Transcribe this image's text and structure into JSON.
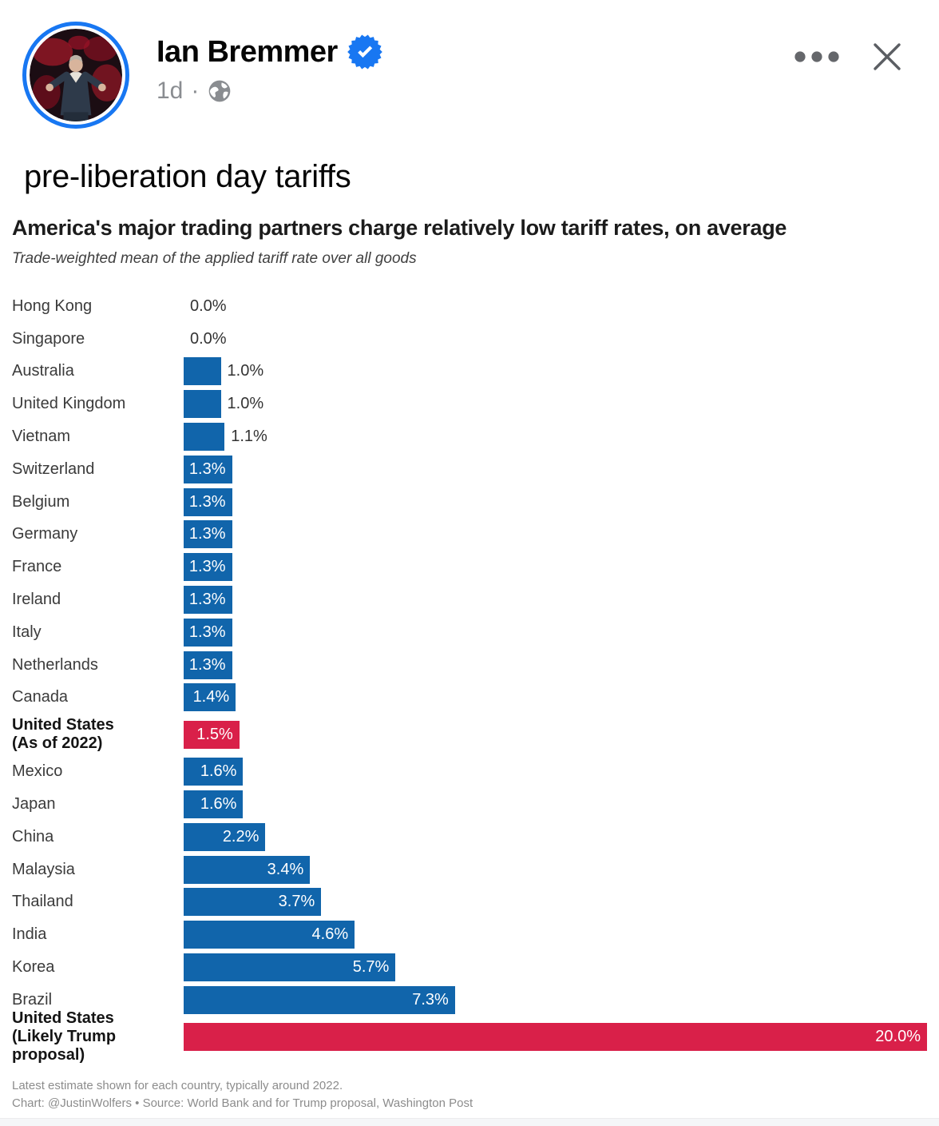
{
  "post": {
    "author": "Ian Bremmer",
    "verified": true,
    "timestamp": "1d",
    "visibility": "Public",
    "separator": "·",
    "text": "pre-liberation day tariffs"
  },
  "header_icons": {
    "more_options": "ellipsis-horizontal",
    "close": "x-cross",
    "verified": "blue-seal-check",
    "visibility": "globe"
  },
  "colors": {
    "facebook_blue": "#1877f2",
    "bar_blue": "#1165ab",
    "bar_red": "#d92049",
    "meta_gray": "#8a8d91",
    "icon_gray": "#606770"
  },
  "chart_data": {
    "type": "bar",
    "orientation": "horizontal",
    "title": "America's major trading partners charge relatively low tariff rates, on average",
    "subtitle": "Trade-weighted mean of the applied tariff rate over all goods",
    "categories": [
      "Hong Kong",
      "Singapore",
      "Australia",
      "United Kingdom",
      "Vietnam",
      "Switzerland",
      "Belgium",
      "Germany",
      "France",
      "Ireland",
      "Italy",
      "Netherlands",
      "Canada",
      "United States\n(As of 2022)",
      "Mexico",
      "Japan",
      "China",
      "Malaysia",
      "Thailand",
      "India",
      "Korea",
      "Brazil",
      "United States\n(Likely Trump proposal)"
    ],
    "values": [
      0.0,
      0.0,
      1.0,
      1.0,
      1.1,
      1.3,
      1.3,
      1.3,
      1.3,
      1.3,
      1.3,
      1.3,
      1.4,
      1.5,
      1.6,
      1.6,
      2.2,
      3.4,
      3.7,
      4.6,
      5.7,
      7.3,
      20.0
    ],
    "value_labels": [
      "0.0%",
      "0.0%",
      "1.0%",
      "1.0%",
      "1.1%",
      "1.3%",
      "1.3%",
      "1.3%",
      "1.3%",
      "1.3%",
      "1.3%",
      "1.3%",
      "1.4%",
      "1.5%",
      "1.6%",
      "1.6%",
      "2.2%",
      "3.4%",
      "3.7%",
      "4.6%",
      "5.7%",
      "7.3%",
      "20.0%"
    ],
    "highlight_indices": [
      13,
      22
    ],
    "bar_color": "#1165ab",
    "highlight_color": "#d92049",
    "xlim": [
      0,
      20
    ],
    "inside_label_min_value": 1.3,
    "grid": false,
    "legend": "none",
    "note": "Latest estimate shown for each country, typically around 2022.",
    "credit": "Chart: @JustinWolfers • Source: World Bank and for Trump proposal, Washington Post"
  }
}
